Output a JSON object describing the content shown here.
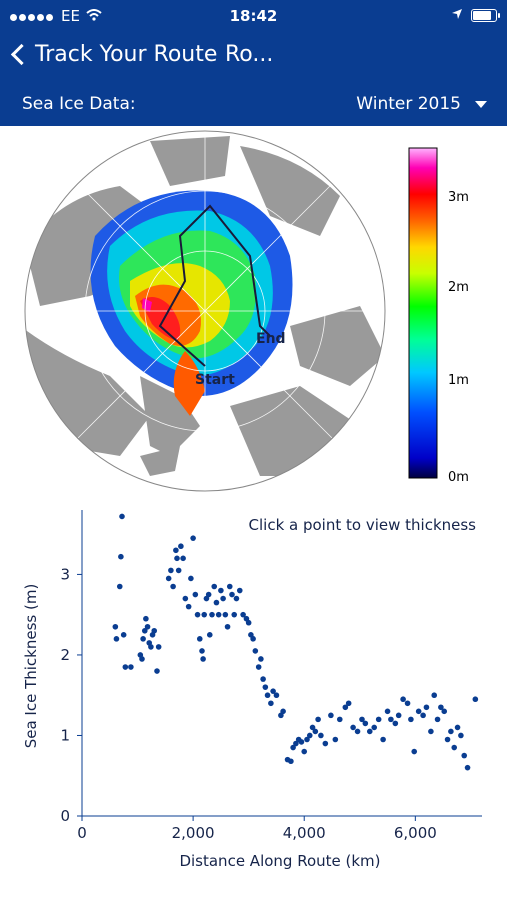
{
  "status_bar": {
    "carrier": "EE",
    "time": "18:42"
  },
  "nav": {
    "back_label": "Track Your Route",
    "title": "Ro..."
  },
  "data_selector": {
    "label": "Sea Ice Data:",
    "selected": "Winter 2015"
  },
  "map": {
    "route_start_label": "Start",
    "route_end_label": "End",
    "colorbar_ticks": [
      "3m",
      "2m",
      "1m",
      "0m"
    ]
  },
  "colors": {
    "nav_bg": "#0a3d91",
    "point_color": "#0a3d91"
  },
  "chart_data": {
    "type": "scatter",
    "title": "Click a point to view thickness",
    "xlabel": "Distance Along Route (km)",
    "ylabel": "Sea Ice Thickness (m)",
    "xlim": [
      0,
      7200
    ],
    "ylim": [
      0,
      3.8
    ],
    "x_ticks": [
      "0",
      "2,000",
      "4,000",
      "6,000"
    ],
    "y_ticks": [
      "0",
      "1",
      "2",
      "3"
    ],
    "points": [
      [
        600,
        2.35
      ],
      [
        620,
        2.2
      ],
      [
        680,
        2.85
      ],
      [
        700,
        3.22
      ],
      [
        720,
        3.72
      ],
      [
        750,
        2.25
      ],
      [
        780,
        1.85
      ],
      [
        880,
        1.85
      ],
      [
        1050,
        2.0
      ],
      [
        1080,
        1.95
      ],
      [
        1100,
        2.2
      ],
      [
        1130,
        2.3
      ],
      [
        1150,
        2.45
      ],
      [
        1180,
        2.35
      ],
      [
        1210,
        2.15
      ],
      [
        1240,
        2.1
      ],
      [
        1270,
        2.25
      ],
      [
        1300,
        2.3
      ],
      [
        1350,
        1.8
      ],
      [
        1380,
        2.1
      ],
      [
        1560,
        2.95
      ],
      [
        1600,
        3.05
      ],
      [
        1640,
        2.85
      ],
      [
        1690,
        3.3
      ],
      [
        1710,
        3.2
      ],
      [
        1740,
        3.05
      ],
      [
        1780,
        3.35
      ],
      [
        1820,
        3.2
      ],
      [
        1860,
        2.7
      ],
      [
        1920,
        2.6
      ],
      [
        1960,
        2.95
      ],
      [
        2000,
        3.45
      ],
      [
        2040,
        2.75
      ],
      [
        2080,
        2.5
      ],
      [
        2120,
        2.2
      ],
      [
        2160,
        2.05
      ],
      [
        2180,
        1.95
      ],
      [
        2200,
        2.5
      ],
      [
        2240,
        2.7
      ],
      [
        2280,
        2.75
      ],
      [
        2300,
        2.25
      ],
      [
        2340,
        2.5
      ],
      [
        2380,
        2.85
      ],
      [
        2420,
        2.65
      ],
      [
        2460,
        2.5
      ],
      [
        2500,
        2.8
      ],
      [
        2540,
        2.7
      ],
      [
        2580,
        2.5
      ],
      [
        2620,
        2.35
      ],
      [
        2660,
        2.85
      ],
      [
        2700,
        2.75
      ],
      [
        2740,
        2.5
      ],
      [
        2780,
        2.7
      ],
      [
        2840,
        2.8
      ],
      [
        2900,
        2.5
      ],
      [
        2960,
        2.45
      ],
      [
        3000,
        2.4
      ],
      [
        3040,
        2.25
      ],
      [
        3080,
        2.2
      ],
      [
        3120,
        2.05
      ],
      [
        3180,
        1.85
      ],
      [
        3220,
        1.95
      ],
      [
        3260,
        1.7
      ],
      [
        3300,
        1.6
      ],
      [
        3340,
        1.5
      ],
      [
        3400,
        1.4
      ],
      [
        3440,
        1.55
      ],
      [
        3500,
        1.5
      ],
      [
        3580,
        1.25
      ],
      [
        3620,
        1.3
      ],
      [
        3700,
        0.7
      ],
      [
        3760,
        0.68
      ],
      [
        3800,
        0.85
      ],
      [
        3850,
        0.9
      ],
      [
        3900,
        0.95
      ],
      [
        3950,
        0.92
      ],
      [
        4000,
        0.8
      ],
      [
        4050,
        0.95
      ],
      [
        4100,
        1.0
      ],
      [
        4150,
        1.1
      ],
      [
        4200,
        1.05
      ],
      [
        4250,
        1.2
      ],
      [
        4300,
        1.0
      ],
      [
        4380,
        0.9
      ],
      [
        4480,
        1.25
      ],
      [
        4560,
        0.95
      ],
      [
        4640,
        1.2
      ],
      [
        4740,
        1.35
      ],
      [
        4800,
        1.4
      ],
      [
        4880,
        1.1
      ],
      [
        4960,
        1.05
      ],
      [
        5040,
        1.2
      ],
      [
        5100,
        1.15
      ],
      [
        5180,
        1.05
      ],
      [
        5260,
        1.1
      ],
      [
        5340,
        1.2
      ],
      [
        5420,
        0.95
      ],
      [
        5500,
        1.3
      ],
      [
        5560,
        1.2
      ],
      [
        5640,
        1.15
      ],
      [
        5700,
        1.25
      ],
      [
        5780,
        1.45
      ],
      [
        5860,
        1.4
      ],
      [
        5920,
        1.2
      ],
      [
        5980,
        0.8
      ],
      [
        6060,
        1.3
      ],
      [
        6140,
        1.25
      ],
      [
        6200,
        1.35
      ],
      [
        6280,
        1.05
      ],
      [
        6340,
        1.5
      ],
      [
        6400,
        1.2
      ],
      [
        6460,
        1.35
      ],
      [
        6520,
        1.3
      ],
      [
        6580,
        0.95
      ],
      [
        6640,
        1.05
      ],
      [
        6700,
        0.85
      ],
      [
        6760,
        1.1
      ],
      [
        6820,
        1.0
      ],
      [
        6880,
        0.75
      ],
      [
        6940,
        0.6
      ],
      [
        7080,
        1.45
      ]
    ]
  }
}
